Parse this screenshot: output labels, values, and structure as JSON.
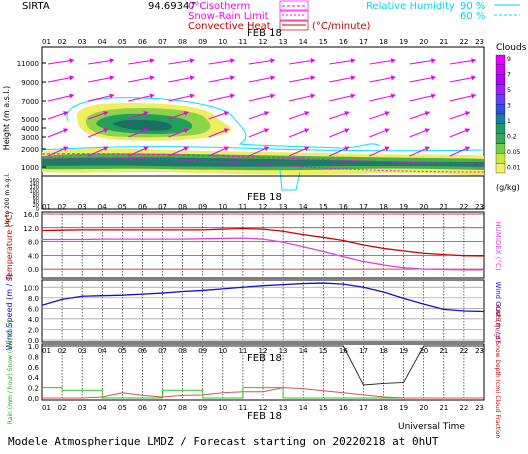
{
  "header": {
    "station": "SIRTA",
    "station_code": "94.69347",
    "legend_0c": "0°C",
    "legend_isotherm": "isotherm",
    "legend_snow_rain": "Snow-Rain Limit",
    "legend_convective": "Convective Heat.",
    "legend_convective_unit": "(°C/minute)",
    "legend_rh": "Relative Humidity",
    "rh_90": "90 %",
    "rh_60": "60 %"
  },
  "colors": {
    "isotherm": "#ff00ff",
    "snow_rain": "#ff00ff",
    "convective": "#d00000",
    "rh": "#00e5ff",
    "temp": "#d00000",
    "humidex": "#e040e0",
    "wind": "#1010d0",
    "rain": "#22cc22",
    "snow": "#cc0000",
    "cape": "#e05050",
    "cloud": "#222222"
  },
  "hours": [
    "01",
    "02",
    "03",
    "04",
    "05",
    "06",
    "07",
    "08",
    "09",
    "10",
    "11",
    "12",
    "13",
    "14",
    "15",
    "16",
    "17",
    "18",
    "19",
    "20",
    "21",
    "22",
    "23"
  ],
  "date_label": "FEB 18",
  "footer": "Modele Atmospherique LMDZ / Forecast starting on 20220218 at 0hUT",
  "universal_time": "Universal Time",
  "chart_data": [
    {
      "type": "heatmap",
      "title": "",
      "ylabel": "Height (m a.s.l.)",
      "ylabel_low": "Up to 200 m a.g.l.",
      "y_ticks_high": [
        "11000",
        "9000",
        "7000",
        "5000",
        "4000",
        "3000",
        "2000",
        "1000"
      ],
      "y_ticks_low": [
        "160",
        "140",
        "120",
        "100",
        "80",
        "60",
        "40",
        "20",
        "0"
      ],
      "colorbar_title": "Clouds",
      "colorbar_unit": "(g/kg)",
      "colorbar_ticks": [
        "9",
        "7",
        "5",
        "3",
        "1",
        "0.2",
        "0.05",
        "0.01"
      ],
      "colorbar_colors": [
        "#e600ff",
        "#cc00ff",
        "#b400ff",
        "#9c20ff",
        "#6a3cff",
        "#3350e0",
        "#1c7aa0",
        "#1f9a6a",
        "#3aa855",
        "#7cc84a",
        "#c8e840",
        "#f0f06a"
      ]
    },
    {
      "type": "line",
      "x": [
        "01",
        "02",
        "03",
        "04",
        "05",
        "06",
        "07",
        "08",
        "09",
        "10",
        "11",
        "12",
        "13",
        "14",
        "15",
        "16",
        "17",
        "18",
        "19",
        "20",
        "21",
        "22",
        "23"
      ],
      "ylabel": "Temperature (°C)",
      "ylabel_right": "HUMIDEX (°C)",
      "y_ticks": [
        "16.0",
        "12.0",
        "8.0",
        "4.0",
        "0.0"
      ],
      "ylim": [
        -2,
        16
      ],
      "series": [
        {
          "name": "Temperature",
          "values": [
            11.2,
            11.3,
            11.4,
            11.4,
            11.4,
            11.4,
            11.4,
            11.4,
            11.4,
            11.6,
            11.8,
            11.6,
            11.0,
            10.0,
            9.2,
            8.3,
            7.0,
            6.0,
            5.3,
            4.6,
            4.2,
            3.9,
            3.8
          ]
        },
        {
          "name": "HUMIDEX",
          "values": [
            8.6,
            8.6,
            8.6,
            8.7,
            8.7,
            8.7,
            8.7,
            8.7,
            8.8,
            8.9,
            9.0,
            8.7,
            7.8,
            6.5,
            5.1,
            3.6,
            2.2,
            1.2,
            0.4,
            0.0,
            -0.1,
            -0.2,
            -0.2
          ]
        }
      ]
    },
    {
      "type": "line",
      "x": [
        "01",
        "02",
        "03",
        "04",
        "05",
        "06",
        "07",
        "08",
        "09",
        "10",
        "11",
        "12",
        "13",
        "14",
        "15",
        "16",
        "17",
        "18",
        "19",
        "20",
        "21",
        "22",
        "23"
      ],
      "ylabel": "Wind Speed (m / s)",
      "ylabel_right": "Wind Gust (m / s)",
      "y_ticks": [
        "10.0",
        "8.0",
        "6.0",
        "4.0",
        "2.0",
        "0.0"
      ],
      "ylim": [
        0,
        11
      ],
      "series": [
        {
          "name": "Wind Speed",
          "values": [
            6.6,
            7.7,
            8.3,
            8.4,
            8.5,
            8.7,
            8.9,
            9.2,
            9.4,
            9.7,
            10.0,
            10.3,
            10.5,
            10.7,
            10.8,
            10.6,
            10.0,
            9.1,
            7.9,
            6.8,
            5.8,
            5.5,
            5.4
          ]
        }
      ]
    },
    {
      "type": "line",
      "x": [
        "01",
        "02",
        "03",
        "04",
        "05",
        "06",
        "07",
        "08",
        "09",
        "10",
        "11",
        "12",
        "13",
        "14",
        "15",
        "16",
        "17",
        "18",
        "19",
        "20",
        "21",
        "22",
        "23"
      ],
      "ylabel": "Rain (mm / hour) Snow (cm / hour)",
      "ylabel_right": "CAPE (J / g) Snow Depth (cm) Cloud Fraction",
      "y_ticks": [
        "1.0",
        "0.8",
        "0.6",
        "0.4",
        "0.2",
        "0.0"
      ],
      "ylim": [
        0,
        1
      ],
      "series": [
        {
          "name": "Rain",
          "values": [
            0.2,
            0.15,
            0.15,
            0.0,
            0.0,
            0.0,
            0.15,
            0.15,
            0.0,
            0.0,
            0.2,
            0.2,
            0.0,
            0.0,
            0.0,
            0.0,
            0.0,
            0.0,
            0.0,
            0.0,
            0.0,
            0.0,
            0.0
          ]
        },
        {
          "name": "CAPE",
          "values": [
            0.0,
            0.0,
            0.0,
            0.02,
            0.1,
            0.05,
            0.02,
            0.05,
            0.06,
            0.1,
            0.12,
            0.12,
            0.2,
            0.18,
            0.14,
            0.1,
            0.06,
            0.02,
            0.0,
            0.0,
            0.0,
            0.0,
            0.0
          ]
        },
        {
          "name": "Cloud Fraction",
          "values": [
            1.0,
            1.0,
            1.0,
            1.0,
            1.0,
            1.0,
            1.0,
            1.0,
            1.0,
            1.0,
            1.0,
            1.0,
            1.0,
            1.0,
            1.0,
            1.0,
            0.25,
            0.28,
            0.3,
            1.0,
            1.0,
            1.0,
            1.0
          ]
        }
      ]
    }
  ]
}
